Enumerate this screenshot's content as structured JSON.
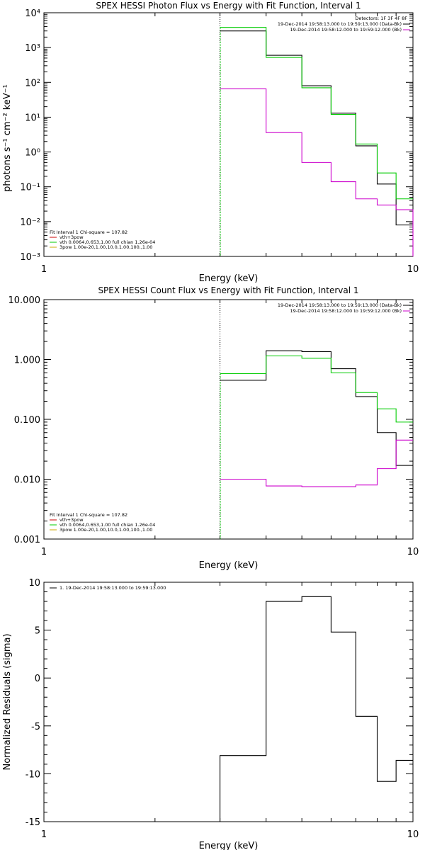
{
  "chart_data": [
    {
      "type": "line",
      "title": "SPEX HESSI Photon Flux vs Energy with Fit Function, Interval 1",
      "xlabel": "Energy (keV)",
      "ylabel": "photons s⁻¹ cm⁻² keV⁻¹",
      "xscale": "log",
      "yscale": "log",
      "xlim": [
        1,
        10
      ],
      "ylim": [
        0.001,
        10000
      ],
      "x_ticks": [
        "1",
        "10"
      ],
      "y_ticks": [
        "10⁻³",
        "10⁻²",
        "10⁻¹",
        "10⁰",
        "10¹",
        "10²",
        "10³",
        "10⁴"
      ],
      "fit_start": 3,
      "bin_edges": [
        3.0,
        4.0,
        5.0,
        6.0,
        7.0,
        8.0,
        9.0,
        10.0
      ],
      "series": [
        {
          "color": "#000000",
          "values": [
            3000,
            600,
            80,
            13,
            1.5,
            0.12,
            0.008
          ]
        },
        {
          "color": "#00cc00",
          "values": [
            3800,
            520,
            70,
            12,
            1.7,
            0.25,
            0.045
          ]
        },
        {
          "color": "#cc00cc",
          "values": [
            65,
            3.6,
            0.5,
            0.14,
            0.045,
            0.03,
            0.022
          ]
        }
      ],
      "legend_top": {
        "position": "top-right",
        "header": "Detectors: 1F 3F 4F 8F",
        "entries": [
          {
            "text": "19-Dec-2014 19:58:13.000 to 19:59:13.000 (Data-Bk)",
            "color": "#000000"
          },
          {
            "text": "19-Dec-2014 19:58:12.000 to 19:59:12.000 (Bk)",
            "color": "#cc00cc"
          }
        ]
      },
      "legend_bottom": {
        "position": "bottom-left",
        "header": "Fit Interval 1    Chi-square = 107.82",
        "entries": [
          {
            "text": "vth+3pow",
            "color": "#cc0000"
          },
          {
            "text": "vth 0.0064,0.653,1.00  full chian 1.26e-04",
            "color": "#00cc00"
          },
          {
            "text": "3pow 1.00e-20,1.00,10.0,1.00,100.,1.00",
            "color": "#ccaa00"
          }
        ]
      }
    },
    {
      "type": "line",
      "title": "SPEX HESSI Count Flux vs Energy with Fit Function, Interval 1",
      "xlabel": "Energy (keV)",
      "ylabel": "",
      "xscale": "log",
      "yscale": "log",
      "xlim": [
        1,
        10
      ],
      "ylim": [
        0.001,
        10
      ],
      "x_ticks": [
        "1",
        "10"
      ],
      "y_ticks": [
        "0.001",
        "0.010",
        "0.100",
        "1.000",
        "10.000"
      ],
      "fit_start": 3,
      "bin_edges": [
        3.0,
        4.0,
        5.0,
        6.0,
        7.0,
        8.0,
        9.0,
        10.0
      ],
      "series": [
        {
          "color": "#000000",
          "values": [
            0.45,
            1.4,
            1.35,
            0.7,
            0.24,
            0.06,
            0.017
          ]
        },
        {
          "color": "#00cc00",
          "values": [
            0.58,
            1.15,
            1.05,
            0.6,
            0.28,
            0.15,
            0.09
          ]
        },
        {
          "color": "#cc00cc",
          "values": [
            0.01,
            0.0077,
            0.0075,
            0.0075,
            0.008,
            0.015,
            0.045
          ]
        }
      ],
      "legend_top": {
        "position": "top-right",
        "entries": [
          {
            "text": "19-Dec-2014 19:58:13.000 to 19:59:13.000 (Data-Bk)",
            "color": "#000000"
          },
          {
            "text": "19-Dec-2014 19:58:12.000 to 19:59:12.000 (Bk)",
            "color": "#cc00cc"
          }
        ]
      },
      "legend_bottom": {
        "position": "bottom-left",
        "header": "Fit Interval 1    Chi-square = 107.82",
        "entries": [
          {
            "text": "vth+3pow",
            "color": "#cc0000"
          },
          {
            "text": "vth 0.0064,0.653,1.00  full chian 1.26e-04",
            "color": "#00cc00"
          },
          {
            "text": "3pow 1.00e-20,1.00,10.0,1.00,100.,1.00",
            "color": "#ccaa00"
          }
        ]
      }
    },
    {
      "type": "line",
      "title": "",
      "xlabel": "Energy (keV)",
      "ylabel": "Normalized Residuals (sigma)",
      "xscale": "log",
      "yscale": "linear",
      "xlim": [
        1,
        10
      ],
      "ylim": [
        -15,
        10
      ],
      "x_ticks": [
        "1",
        "10"
      ],
      "y_ticks": [
        "-15",
        "-10",
        "-5",
        "0",
        "5",
        "10"
      ],
      "bin_edges": [
        3.0,
        4.0,
        5.0,
        6.0,
        7.0,
        8.0,
        9.0,
        10.0
      ],
      "series": [
        {
          "color": "#000000",
          "values": [
            -8.1,
            8.0,
            8.5,
            4.8,
            -4.0,
            -10.8,
            -8.6
          ]
        }
      ],
      "legend_top": {
        "position": "top-left",
        "entries": [
          {
            "text": "1. 19-Dec-2014 19:58:13.000 to 19:59:13.000",
            "color": "#000000"
          }
        ]
      }
    }
  ]
}
